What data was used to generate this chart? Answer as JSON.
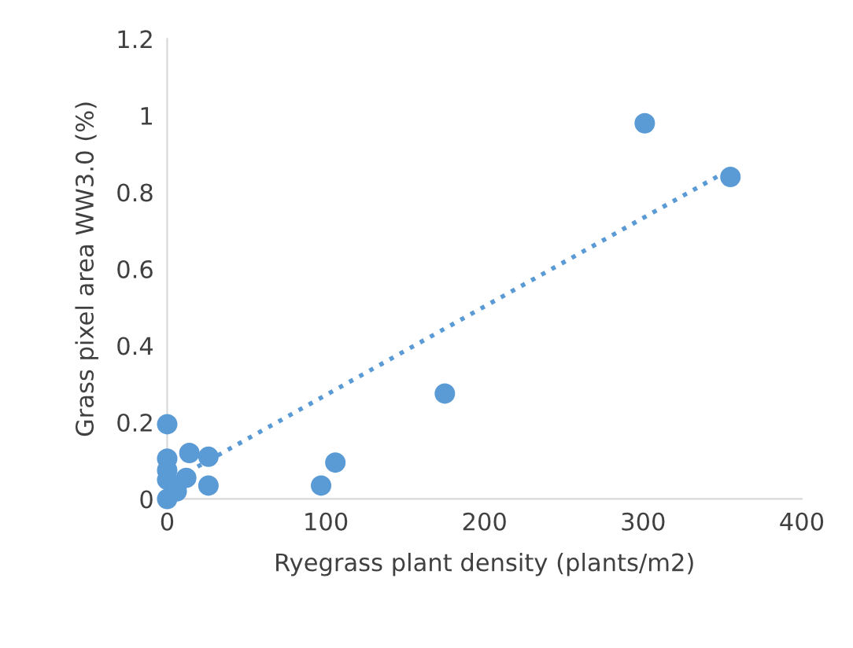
{
  "chart_data": {
    "type": "scatter",
    "xlabel": "Ryegrass plant density (plants/m2)",
    "ylabel": "Grass pixel area WW3.0 (%)",
    "x": [
      301,
      355,
      175,
      106,
      97,
      26,
      26,
      14,
      0,
      0,
      0,
      0,
      0,
      6,
      12
    ],
    "series": [
      {
        "color": "#5b9bd5",
        "values": [
          0.98,
          0.84,
          0.275,
          0.095,
          0.035,
          0.11,
          0.035,
          0.12,
          0.195,
          0.105,
          0.075,
          0.05,
          0,
          0.02,
          0.055
        ]
      },
      {
        "type": "line",
        "line_style": "dotted",
        "marker": "none",
        "color": "#5b9bd5",
        "x": [
          0,
          355
        ],
        "values": [
          0.04,
          0.86
        ]
      }
    ],
    "marker": "circle",
    "xlim": [
      0,
      400
    ],
    "ylim": [
      0,
      1.2
    ],
    "xticks": [
      0,
      100,
      200,
      300,
      400
    ],
    "yticks": [
      0,
      0.2,
      0.4,
      0.6,
      0.8,
      1,
      1.2
    ],
    "grid": false,
    "legend": false
  }
}
